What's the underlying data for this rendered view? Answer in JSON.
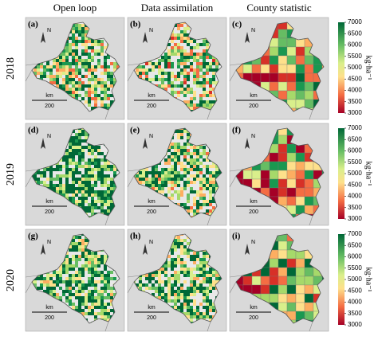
{
  "columns": [
    "Open loop",
    "Data assimilation",
    "County statistic"
  ],
  "rows": [
    "2018",
    "2019",
    "2020"
  ],
  "panels": [
    "(a)",
    "(b)",
    "(c)",
    "(d)",
    "(e)",
    "(f)",
    "(g)",
    "(h)",
    "(i)"
  ],
  "north": "N",
  "scale": {
    "unit": "km",
    "value": "200"
  },
  "colorbar": {
    "range": [
      3000,
      7000
    ],
    "ticks": [
      3000,
      3500,
      4000,
      4500,
      5000,
      5500,
      6000,
      6500,
      7000
    ],
    "label": "kg·ha⁻¹"
  }
}
